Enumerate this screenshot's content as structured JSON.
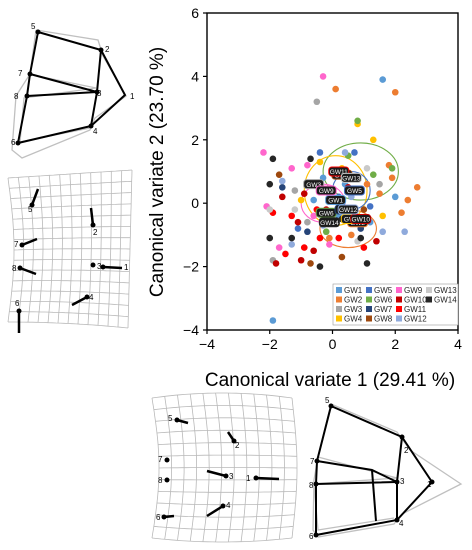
{
  "chart_data": {
    "type": "scatter",
    "xlabel": "Canonical variate 1 (29.41 %)",
    "ylabel": "Canonical variate 2 (23.70 %)",
    "xlim": [
      -4,
      4
    ],
    "ylim": [
      -4,
      6
    ],
    "xticks": [
      "−4",
      "−2",
      "0",
      "2",
      "4"
    ],
    "yticks": [
      "−4",
      "−2",
      "0",
      "2",
      "4",
      "6"
    ],
    "grid": false,
    "legend_position": "bottom-right",
    "series": [
      {
        "name": "GW1",
        "color": "#5b9bd5",
        "points": [
          [
            -1.9,
            -3.7
          ],
          [
            1.6,
            3.9
          ],
          [
            -0.6,
            0.1
          ],
          [
            0.4,
            0.6
          ],
          [
            1.2,
            -0.6
          ],
          [
            -0.3,
            0.8
          ],
          [
            0.2,
            -0.4
          ],
          [
            2.0,
            0.2
          ]
        ]
      },
      {
        "name": "GW2",
        "color": "#ed7d31",
        "points": [
          [
            2.0,
            3.5
          ],
          [
            0.1,
            3.6
          ],
          [
            2.2,
            -0.3
          ],
          [
            1.1,
            0.6
          ],
          [
            0.6,
            -1.0
          ],
          [
            -0.1,
            -1.1
          ],
          [
            1.9,
            0.8
          ],
          [
            2.4,
            0.1
          ],
          [
            1.8,
            1.2
          ],
          [
            2.7,
            0.5
          ],
          [
            0.9,
            -0.6
          ],
          [
            1.5,
            0.3
          ]
        ]
      },
      {
        "name": "GW3",
        "color": "#a5a5a5",
        "points": [
          [
            -0.5,
            3.2
          ],
          [
            -1.9,
            -1.8
          ],
          [
            -1.2,
            0.4
          ],
          [
            1.5,
            0.6
          ],
          [
            0.6,
            0.8
          ],
          [
            -0.8,
            -0.6
          ]
        ]
      },
      {
        "name": "GW4",
        "color": "#ffc000",
        "points": [
          [
            0.8,
            2.5
          ],
          [
            1.3,
            2.0
          ],
          [
            -0.4,
            1.3
          ],
          [
            1.6,
            -0.4
          ],
          [
            0.3,
            1.1
          ],
          [
            -1.0,
            0.1
          ]
        ]
      },
      {
        "name": "GW5",
        "color": "#4472c4",
        "points": [
          [
            -0.4,
            1.6
          ],
          [
            0.7,
            1.6
          ],
          [
            -1.1,
            -0.8
          ],
          [
            0.2,
            0.2
          ],
          [
            1.2,
            -0.1
          ]
        ]
      },
      {
        "name": "GW6",
        "color": "#70ad47",
        "points": [
          [
            0.8,
            2.6
          ],
          [
            0.5,
            1.5
          ],
          [
            1.9,
            1.1
          ],
          [
            -0.2,
            -0.9
          ],
          [
            1.3,
            0.9
          ]
        ]
      },
      {
        "name": "GW7",
        "color": "#264478",
        "points": [
          [
            -0.8,
            -0.9
          ],
          [
            -1.6,
            0.5
          ],
          [
            0.9,
            -0.8
          ],
          [
            -0.1,
            -0.6
          ],
          [
            0.3,
            0.0
          ]
        ]
      },
      {
        "name": "GW8",
        "color": "#9e480e",
        "points": [
          [
            -1.7,
            0.9
          ],
          [
            0.3,
            -1.7
          ],
          [
            -0.7,
            -1.9
          ],
          [
            1.0,
            -0.2
          ],
          [
            -0.3,
            0.4
          ]
        ]
      },
      {
        "name": "GW9",
        "color": "#ff66cc",
        "points": [
          [
            -0.3,
            4.0
          ],
          [
            -2.2,
            1.6
          ],
          [
            -2.1,
            -0.1
          ],
          [
            -1.7,
            -1.4
          ],
          [
            -0.8,
            1.2
          ],
          [
            -0.1,
            -1.3
          ],
          [
            -1.3,
            1.1
          ],
          [
            -0.6,
            -0.4
          ],
          [
            0.4,
            -0.2
          ]
        ]
      },
      {
        "name": "GW10",
        "color": "#c00000",
        "points": [
          [
            -1.8,
            -1.9
          ],
          [
            -1.0,
            -1.8
          ],
          [
            -0.6,
            -1.5
          ],
          [
            -1.1,
            -0.6
          ],
          [
            0.7,
            -0.3
          ],
          [
            -0.2,
            -0.2
          ],
          [
            1.4,
            -1.2
          ],
          [
            -1.6,
            0.2
          ],
          [
            0.5,
            0.5
          ],
          [
            -0.9,
            0.3
          ]
        ]
      },
      {
        "name": "GW11",
        "color": "#ff0000",
        "points": [
          [
            -1.5,
            -1.6
          ],
          [
            -0.9,
            -1.4
          ],
          [
            -0.4,
            -1.1
          ],
          [
            0.2,
            -1.1
          ],
          [
            1.0,
            -1.4
          ],
          [
            -1.3,
            -0.4
          ],
          [
            -1.9,
            -0.3
          ],
          [
            -0.5,
            -0.2
          ]
        ]
      },
      {
        "name": "GW12",
        "color": "#8faadc",
        "points": [
          [
            -1.3,
            -1.3
          ],
          [
            0.4,
            1.6
          ],
          [
            1.1,
            -0.5
          ],
          [
            -0.3,
            -0.7
          ],
          [
            0.6,
            0.2
          ],
          [
            -1.6,
            0.7
          ],
          [
            1.6,
            -0.9
          ],
          [
            2.3,
            -0.9
          ]
        ]
      },
      {
        "name": "GW13",
        "color": "#c9c9c9",
        "points": [
          [
            -1.2,
            -0.2
          ],
          [
            1.1,
            1.1
          ],
          [
            0.8,
            -1.2
          ],
          [
            -2.0,
            -0.2
          ],
          [
            0.3,
            0.9
          ]
        ]
      },
      {
        "name": "GW14",
        "color": "#262626",
        "points": [
          [
            -1.9,
            1.4
          ],
          [
            -2.0,
            0.6
          ],
          [
            -2.0,
            -1.1
          ],
          [
            0.9,
            -1.1
          ],
          [
            1.1,
            -1.9
          ],
          [
            -1.3,
            -1.1
          ],
          [
            -0.7,
            1.4
          ],
          [
            -0.4,
            -2.0
          ],
          [
            0.3,
            -0.5
          ]
        ]
      }
    ],
    "centroids": [
      {
        "name": "GW1",
        "x": 0.1,
        "y": 0.1
      },
      {
        "name": "GW2",
        "x": 0.8,
        "y": -0.6
      },
      {
        "name": "GW3",
        "x": -0.6,
        "y": 0.6
      },
      {
        "name": "GW4",
        "x": 0.6,
        "y": -0.5
      },
      {
        "name": "GW5",
        "x": 0.7,
        "y": 0.4
      },
      {
        "name": "GW6",
        "x": -0.2,
        "y": -0.3
      },
      {
        "name": "GW7",
        "x": 0.4,
        "y": -0.2
      },
      {
        "name": "GW8",
        "x": 0.3,
        "y": 0.9
      },
      {
        "name": "GW9",
        "x": -0.2,
        "y": 0.4
      },
      {
        "name": "GW10",
        "x": 0.9,
        "y": -0.5
      },
      {
        "name": "GW11",
        "x": 0.2,
        "y": 1.0
      },
      {
        "name": "GW12",
        "x": 0.5,
        "y": -0.2
      },
      {
        "name": "GW13",
        "x": 0.6,
        "y": 0.8
      },
      {
        "name": "GW14",
        "x": -0.1,
        "y": -0.6
      }
    ],
    "ellipses": [
      {
        "name": "GW6",
        "color": "#70ad47",
        "cx": 0.9,
        "cy": 1.0,
        "rx": 1.2,
        "ry": 0.9
      },
      {
        "name": "GW4",
        "color": "#ffc000",
        "cx": 0.1,
        "cy": 0.4,
        "rx": 1.0,
        "ry": 1.1
      },
      {
        "name": "GW2",
        "color": "#ed7d31",
        "cx": 0.5,
        "cy": -0.8,
        "rx": 0.9,
        "ry": 0.6
      },
      {
        "name": "GW9",
        "color": "#ff66cc",
        "cx": -0.3,
        "cy": 0.0,
        "rx": 0.7,
        "ry": 0.6
      },
      {
        "name": "GW5",
        "color": "#4472c4",
        "cx": 0.6,
        "cy": 0.4,
        "rx": 0.6,
        "ry": 0.6
      }
    ]
  },
  "landmarks": {
    "labels": [
      "1",
      "2",
      "3",
      "4",
      "5",
      "6",
      "7",
      "8"
    ]
  }
}
